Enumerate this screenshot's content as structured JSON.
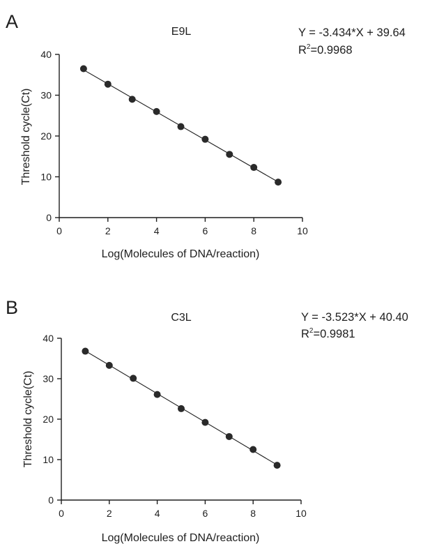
{
  "chart_data": [
    {
      "type": "scatter",
      "panel": "A",
      "title": "E9L",
      "equation": "Y = -3.434*X + 39.64",
      "r2_prefix": "R",
      "r2_sup": "2",
      "r2_value": "=0.9968",
      "fit": {
        "slope": -3.434,
        "intercept": 39.64
      },
      "xlabel": "Log(Molecules of DNA/reaction)",
      "ylabel": "Threshold cycle(Ct)",
      "xlim": [
        0,
        10
      ],
      "ylim": [
        0,
        40
      ],
      "xticks": [
        0,
        2,
        4,
        6,
        8,
        10
      ],
      "yticks": [
        0,
        10,
        20,
        30,
        40
      ],
      "points": [
        {
          "x": 1,
          "y": 36.5
        },
        {
          "x": 2,
          "y": 32.7
        },
        {
          "x": 3,
          "y": 29.0
        },
        {
          "x": 4,
          "y": 26.0
        },
        {
          "x": 5,
          "y": 22.3
        },
        {
          "x": 6,
          "y": 19.2
        },
        {
          "x": 7,
          "y": 15.5
        },
        {
          "x": 8,
          "y": 12.3
        },
        {
          "x": 9,
          "y": 8.7
        }
      ]
    },
    {
      "type": "scatter",
      "panel": "B",
      "title": "C3L",
      "equation": "Y = -3.523*X + 40.40",
      "r2_prefix": "R",
      "r2_sup": "2",
      "r2_value": "=0.9981",
      "fit": {
        "slope": -3.523,
        "intercept": 40.4
      },
      "xlabel": "Log(Molecules of DNA/reaction)",
      "ylabel": "Threshold cycle(Ct)",
      "xlim": [
        0,
        10
      ],
      "ylim": [
        0,
        40
      ],
      "xticks": [
        0,
        2,
        4,
        6,
        8,
        10
      ],
      "yticks": [
        0,
        10,
        20,
        30,
        40
      ],
      "points": [
        {
          "x": 1,
          "y": 36.8
        },
        {
          "x": 2,
          "y": 33.3
        },
        {
          "x": 3,
          "y": 30.1
        },
        {
          "x": 4,
          "y": 26.1
        },
        {
          "x": 5,
          "y": 22.6
        },
        {
          "x": 6,
          "y": 19.2
        },
        {
          "x": 7,
          "y": 15.7
        },
        {
          "x": 8,
          "y": 12.5
        },
        {
          "x": 9,
          "y": 8.6
        }
      ]
    }
  ]
}
